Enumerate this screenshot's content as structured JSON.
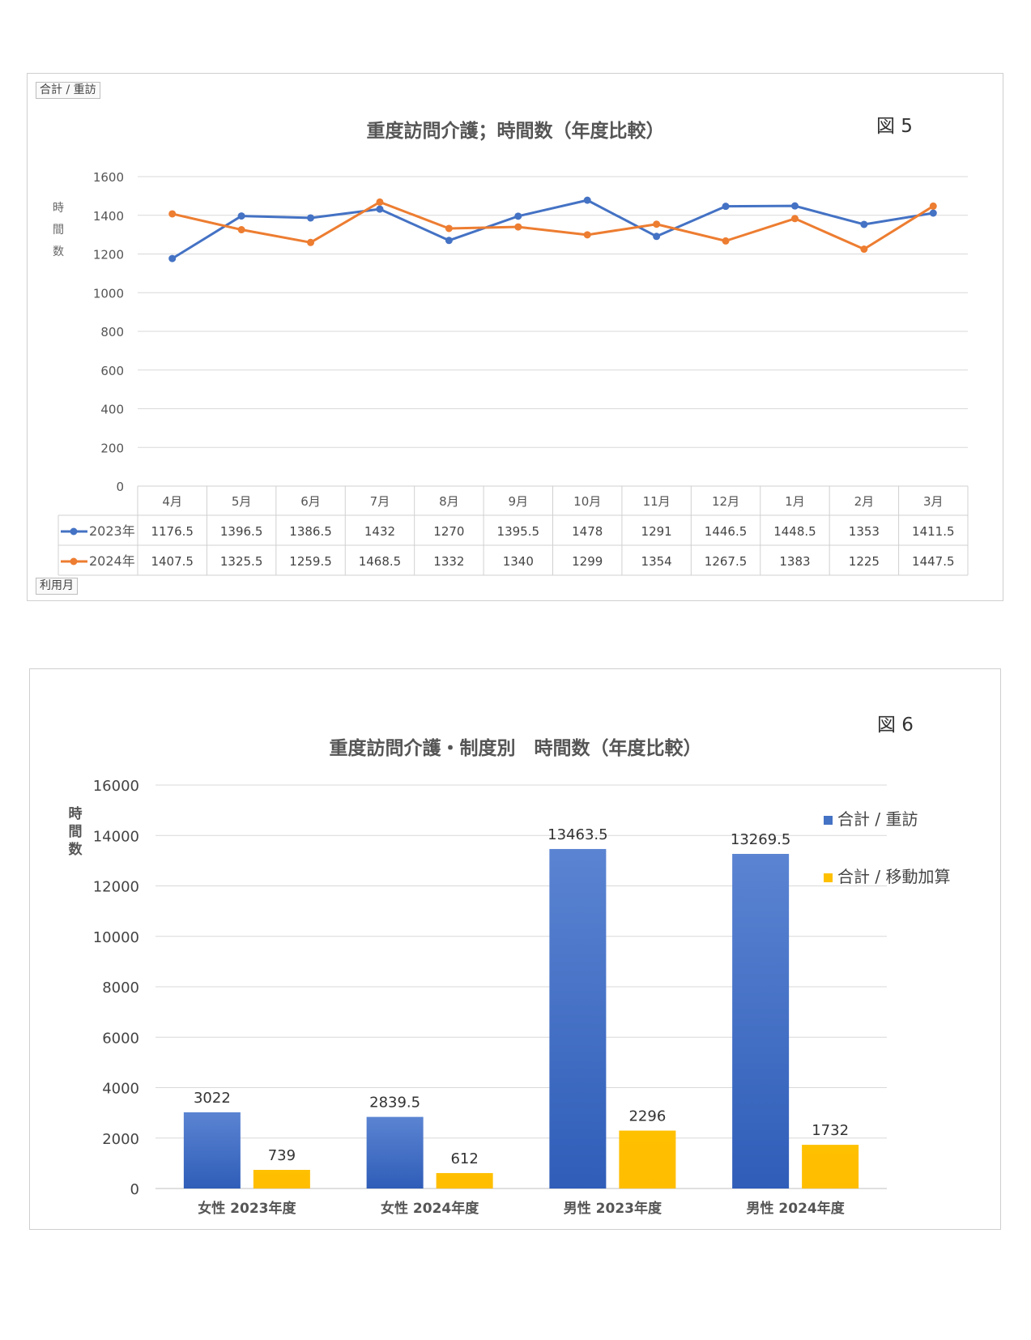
{
  "figure5": {
    "pivot_filter": "合計 / 重訪",
    "pivot_axis": "利用月",
    "figure_label": "図 5",
    "title": "重度訪問介護；時間数（年度比較）",
    "ylabel_chars": [
      "時",
      "間",
      "数"
    ],
    "colors": {
      "2023年": "#4472C4",
      "2024年": "#ED7D31"
    },
    "chart_data": {
      "type": "line",
      "title": "重度訪問介護；時間数（年度比較）",
      "xlabel": "",
      "ylabel": "時間数",
      "ylim": [
        0,
        1600
      ],
      "yticks": [
        0,
        200,
        400,
        600,
        800,
        1000,
        1200,
        1400,
        1600
      ],
      "grid": true,
      "legend": "data-table",
      "categories": [
        "4月",
        "5月",
        "6月",
        "7月",
        "8月",
        "9月",
        "10月",
        "11月",
        "12月",
        "1月",
        "2月",
        "3月"
      ],
      "series": [
        {
          "name": "2023年",
          "values": [
            1176.5,
            1396.5,
            1386.5,
            1432,
            1270,
            1395.5,
            1478,
            1291,
            1446.5,
            1448.5,
            1353,
            1411.5
          ]
        },
        {
          "name": "2024年",
          "values": [
            1407.5,
            1325.5,
            1259.5,
            1468.5,
            1332,
            1340,
            1299,
            1354,
            1267.5,
            1383,
            1225,
            1447.5
          ]
        }
      ]
    }
  },
  "figure6": {
    "figure_label": "図 6",
    "title": "重度訪問介護・制度別　時間数（年度比較）",
    "ylabel_chars": [
      "時",
      "間",
      "数"
    ],
    "colors": {
      "合計 / 重訪": "#4472C4",
      "合計 / 移動加算": "#FFC000"
    },
    "chart_data": {
      "type": "bar",
      "title": "重度訪問介護・制度別　時間数（年度比較）",
      "xlabel": "",
      "ylabel": "時間数",
      "ylim": [
        0,
        16000
      ],
      "yticks": [
        0,
        2000,
        4000,
        6000,
        8000,
        10000,
        12000,
        14000,
        16000
      ],
      "grid": true,
      "legend": "right",
      "categories": [
        "女性 2023年度",
        "女性 2024年度",
        "男性 2023年度",
        "男性 2024年度"
      ],
      "series": [
        {
          "name": "合計 / 重訪",
          "values": [
            3022,
            2839.5,
            13463.5,
            13269.5
          ]
        },
        {
          "name": "合計 / 移動加算",
          "values": [
            739,
            612,
            2296,
            1732
          ]
        }
      ]
    }
  }
}
